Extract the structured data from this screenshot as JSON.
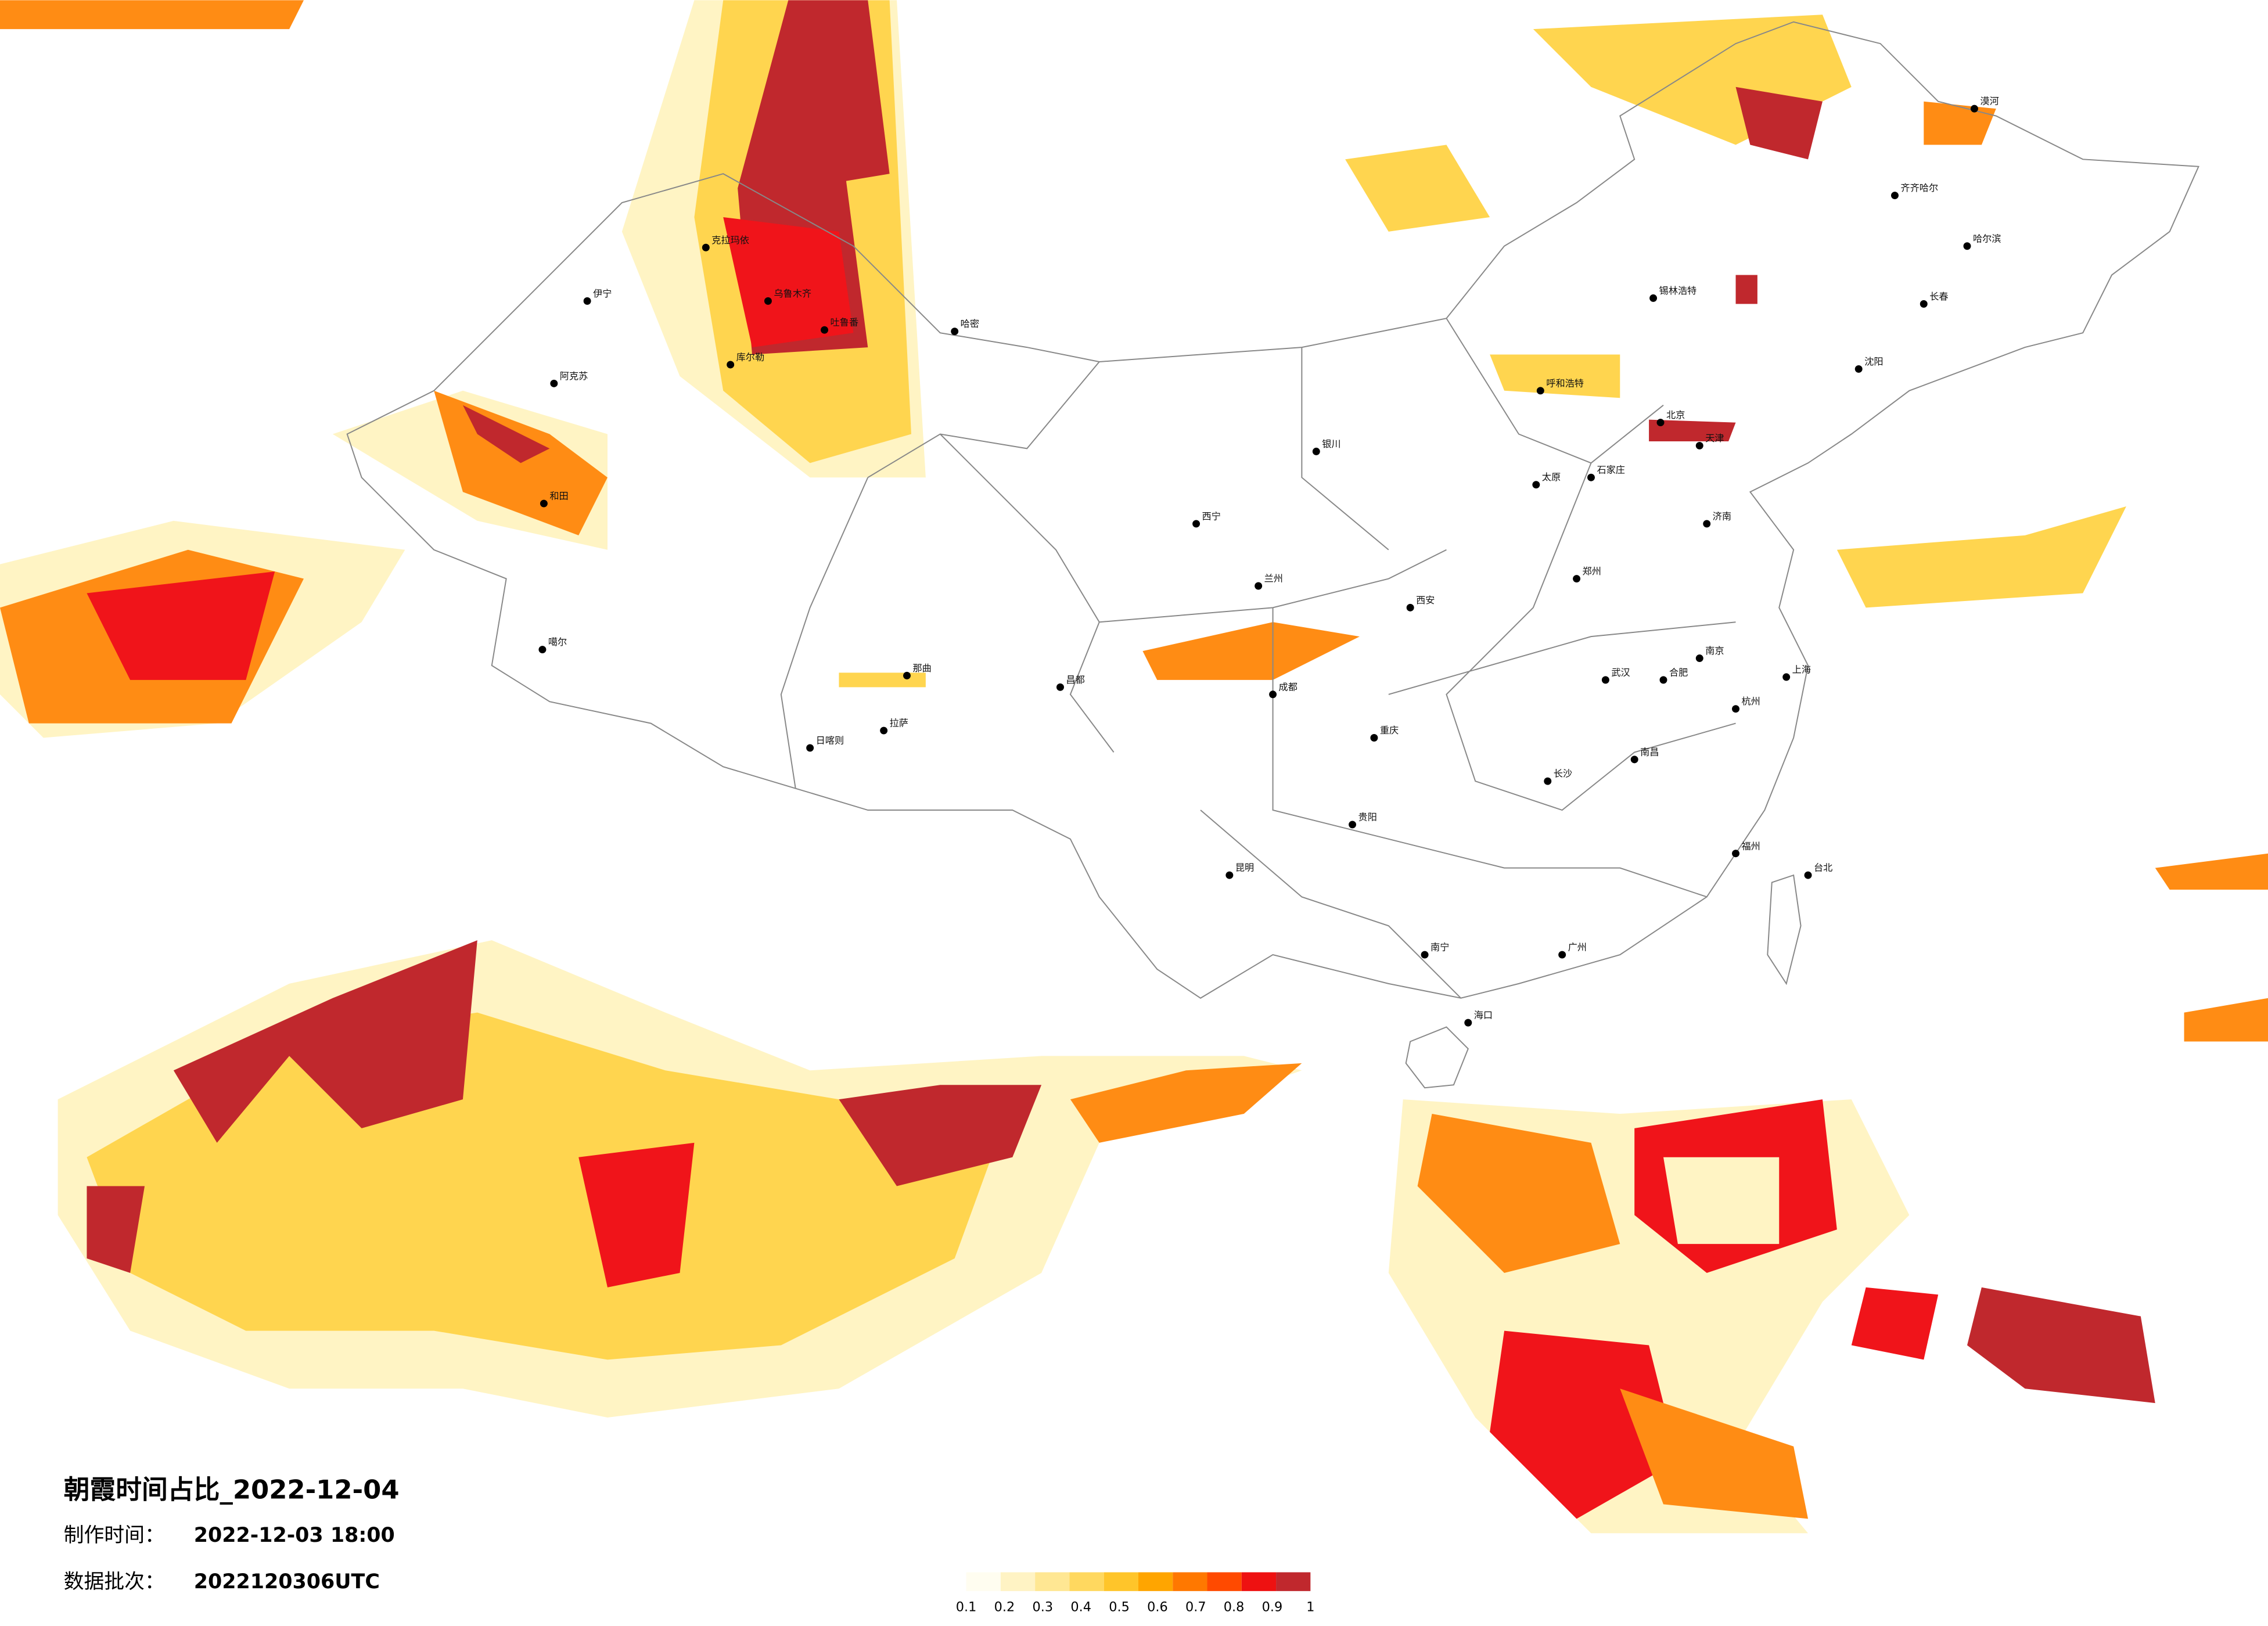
{
  "title": "朝霞时间占比_2022-12-04",
  "info": [
    {
      "label": "制作时间：",
      "value": "2022-12-03 18:00"
    },
    {
      "label": "数据批次：",
      "value": "2022120306UTC"
    }
  ],
  "legend": {
    "colors": [
      "#fffdf0",
      "#fff3c4",
      "#ffe793",
      "#ffd85f",
      "#ffc52a",
      "#ffa500",
      "#ff7800",
      "#ff4a00",
      "#ee1111",
      "#c0282d"
    ],
    "ticks": [
      0.1,
      0.2,
      0.3,
      0.4,
      0.5,
      0.6,
      0.7,
      0.8,
      0.9,
      1
    ]
  },
  "cities": [
    "乌鲁木齐",
    "克拉玛依",
    "伊宁",
    "阿克苏",
    "和田",
    "哈密",
    "吐鲁番",
    "库尔勒",
    "噶尔",
    "拉萨",
    "日喀则",
    "那曲",
    "昌都",
    "西宁",
    "兰州",
    "银川",
    "呼和浩特",
    "北京",
    "天津",
    "石家庄",
    "太原",
    "济南",
    "郑州",
    "西安",
    "武汉",
    "长沙",
    "南昌",
    "杭州",
    "上海",
    "南京",
    "合肥",
    "福州",
    "广州",
    "南宁",
    "海口",
    "昆明",
    "贵阳",
    "成都",
    "重庆",
    "哈尔滨",
    "长春",
    "沈阳",
    "台北",
    "漠河",
    "齐齐哈尔",
    "锡林浩特"
  ]
}
